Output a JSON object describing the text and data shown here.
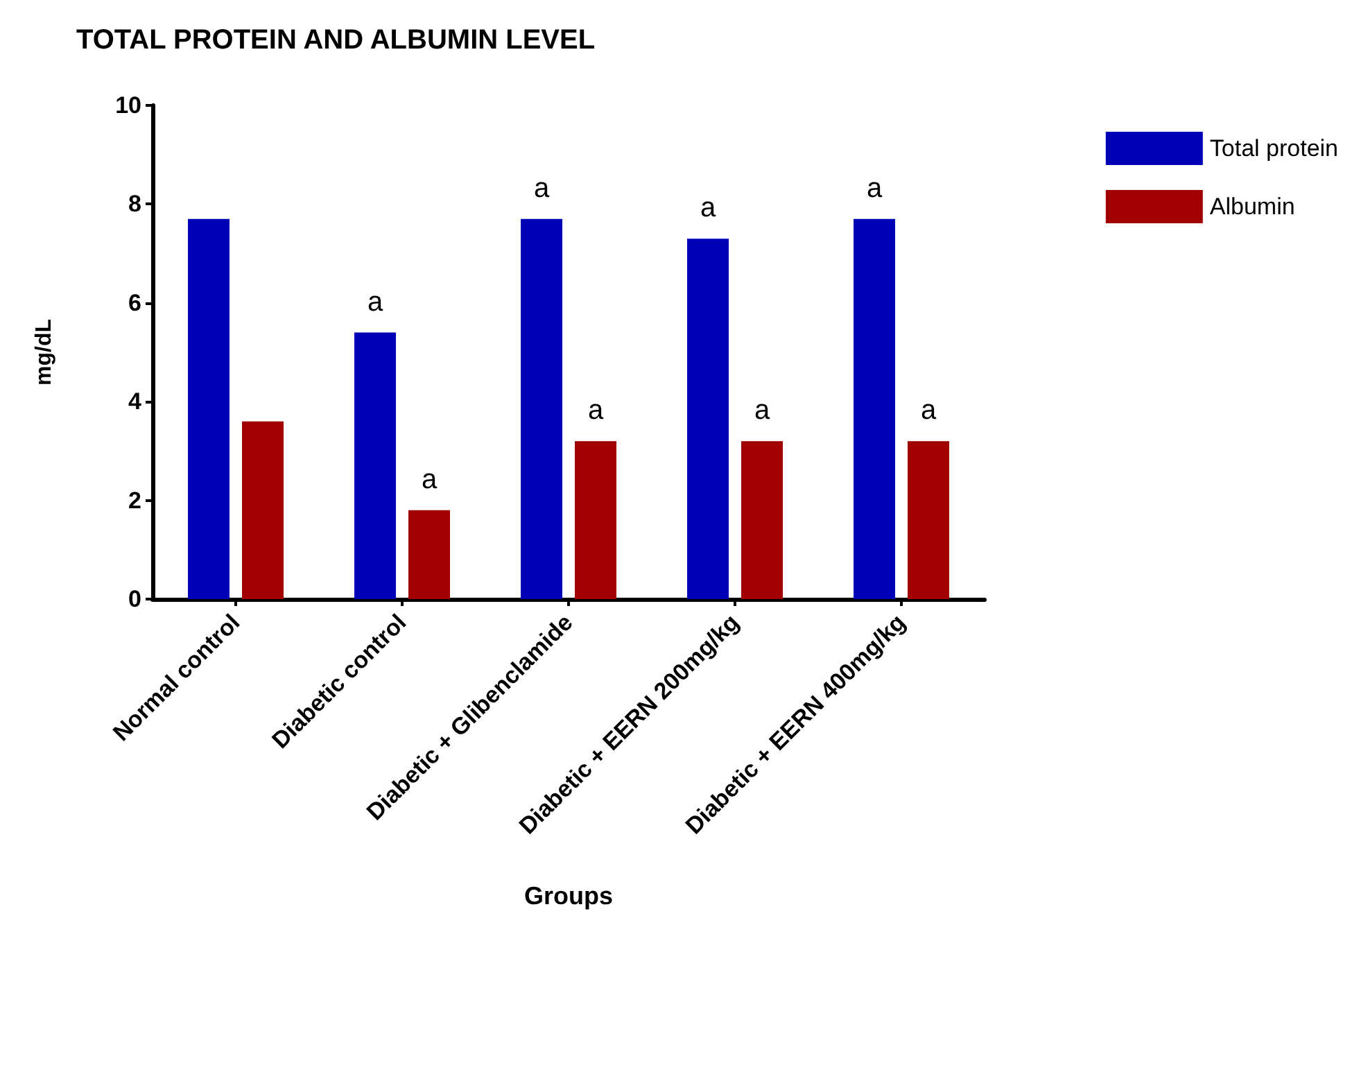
{
  "chart_data": {
    "type": "bar",
    "title": "TOTAL PROTEIN AND ALBUMIN LEVEL",
    "xlabel": "Groups",
    "ylabel": "mg/dL",
    "categories": [
      "Normal control",
      "Diabetic control",
      "Diabetic + Glibenclamide",
      "Diabetic + EERN 200mg/kg",
      "Diabetic + EERN 400mg/kg"
    ],
    "series": [
      {
        "name": "Total protein",
        "color": "#0000b4",
        "values": [
          7.7,
          5.4,
          7.7,
          7.3,
          7.7
        ]
      },
      {
        "name": "Albumin",
        "color": "#a00000",
        "values": [
          3.6,
          1.8,
          3.2,
          3.2,
          3.2
        ]
      }
    ],
    "ylim": [
      0,
      10
    ],
    "yticks": [
      0,
      2,
      4,
      6,
      8,
      10
    ],
    "grid": false,
    "legend": "top right",
    "annotations": [
      {
        "text": "a",
        "x": "Diabetic control",
        "y": 5.4
      },
      {
        "text": "a",
        "x": "Diabetic + Glibenclamide",
        "y": 7.7
      },
      {
        "text": "a",
        "x": "Diabetic + EERN 200mg/kg",
        "y": 7.3
      },
      {
        "text": "a",
        "x": "Diabetic + EERN 400mg/kg",
        "y": 7.7
      },
      {
        "text": "a",
        "x": "Diabetic control",
        "y": 1.8
      },
      {
        "text": "a",
        "x": "Diabetic + Glibenclamide",
        "y": 3.2
      },
      {
        "text": "a",
        "x": "Diabetic + EERN 200mg/kg",
        "y": 3.2
      },
      {
        "text": "a",
        "x": "Diabetic + EERN 400mg/kg",
        "y": 3.2
      }
    ]
  }
}
